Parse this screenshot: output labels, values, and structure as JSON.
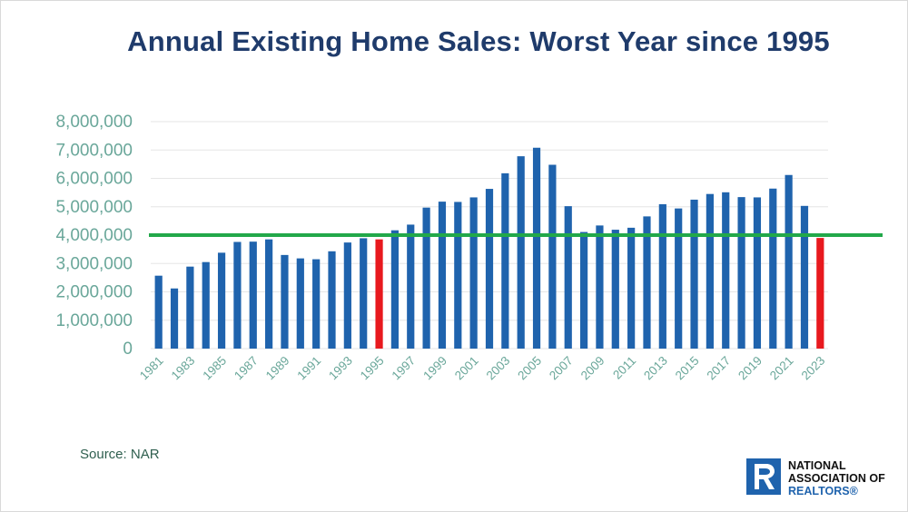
{
  "source_text": "Source: NAR",
  "logo": {
    "line1": "NATIONAL",
    "line2": "ASSOCIATION OF",
    "line3": "REALTORS®",
    "icon": "realtor-r-icon"
  },
  "colors": {
    "title": "#1f3b6b",
    "bar": "#1f63ad",
    "highlight": "#e8191e",
    "threshold": "#22a84a",
    "tick": "#6aa79a",
    "grid": "#e6e6e6"
  },
  "chart_data": {
    "type": "bar",
    "title": "Annual Existing Home Sales: Worst Year since 1995",
    "xlabel": "",
    "ylabel": "",
    "ylim": [
      0,
      8000000
    ],
    "yticks": [
      0,
      1000000,
      2000000,
      3000000,
      4000000,
      5000000,
      6000000,
      7000000,
      8000000
    ],
    "ytick_labels": [
      "0",
      "1,000,000",
      "2,000,000",
      "3,000,000",
      "4,000,000",
      "5,000,000",
      "6,000,000",
      "7,000,000",
      "8,000,000"
    ],
    "categories": [
      "1981",
      "1982",
      "1983",
      "1984",
      "1985",
      "1986",
      "1987",
      "1988",
      "1989",
      "1990",
      "1991",
      "1992",
      "1993",
      "1994",
      "1995",
      "1996",
      "1997",
      "1998",
      "1999",
      "2000",
      "2001",
      "2002",
      "2003",
      "2004",
      "2005",
      "2006",
      "2007",
      "2008",
      "2009",
      "2010",
      "2011",
      "2012",
      "2013",
      "2014",
      "2015",
      "2016",
      "2017",
      "2018",
      "2019",
      "2020",
      "2021",
      "2022",
      "2023"
    ],
    "xtick_labels": [
      "1981",
      "1983",
      "1985",
      "1987",
      "1989",
      "1991",
      "1993",
      "1995",
      "1997",
      "1999",
      "2001",
      "2003",
      "2005",
      "2007",
      "2009",
      "2011",
      "2013",
      "2015",
      "2017",
      "2019",
      "2021",
      "2023"
    ],
    "values": [
      2570000,
      2120000,
      2890000,
      3050000,
      3380000,
      3760000,
      3770000,
      3850000,
      3300000,
      3180000,
      3150000,
      3430000,
      3740000,
      3890000,
      3850000,
      4170000,
      4370000,
      4970000,
      5180000,
      5170000,
      5330000,
      5630000,
      6180000,
      6780000,
      7080000,
      6480000,
      5020000,
      4110000,
      4340000,
      4190000,
      4260000,
      4660000,
      5090000,
      4940000,
      5250000,
      5450000,
      5510000,
      5340000,
      5330000,
      5640000,
      6120000,
      5030000,
      3900000
    ],
    "highlighted": [
      "1995",
      "2023"
    ],
    "reference_line": 4000000,
    "grid": true
  }
}
